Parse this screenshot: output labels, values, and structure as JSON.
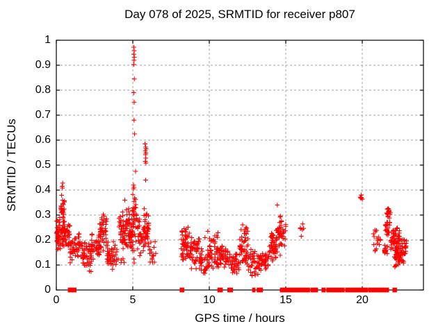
{
  "chart": {
    "title": "Day 078 of 2025, SRMTID for receiver p807",
    "xlabel": "GPS time / hours",
    "ylabel": "SRMTID / TECUs"
  },
  "chart_data": {
    "type": "scatter",
    "title": "Day 078 of 2025, SRMTID for receiver p807",
    "xlabel": "GPS time / hours",
    "ylabel": "SRMTID / TECUs",
    "xlim": [
      0,
      24
    ],
    "ylim": [
      0,
      1
    ],
    "xticks": [
      0,
      5,
      10,
      15,
      20
    ],
    "yticks": [
      0,
      0.1,
      0.2,
      0.3,
      0.4,
      0.5,
      0.6,
      0.7,
      0.8,
      0.9,
      1
    ],
    "grid": true,
    "legend": "none",
    "marker": "plus",
    "colors": {
      "marker": "#ff0000",
      "grid": "#a0a0a0",
      "axis": "#000000",
      "background": "#ffffff"
    },
    "clusters_format": "[x_start_hours, x_end_hours, y_min_tecus, y_max_tecus, point_count]",
    "clusters": [
      [
        0.02,
        0.28,
        0.155,
        0.31,
        40
      ],
      [
        0.3,
        0.55,
        0.26,
        0.4,
        22
      ],
      [
        0.3,
        0.9,
        0.16,
        0.3,
        60
      ],
      [
        0.9,
        1.18,
        0.1,
        0.21,
        18
      ],
      [
        1.18,
        1.7,
        0.1,
        0.26,
        30
      ],
      [
        1.7,
        2.3,
        0.07,
        0.22,
        48
      ],
      [
        2.3,
        2.8,
        0.11,
        0.23,
        36
      ],
      [
        2.8,
        3.3,
        0.13,
        0.33,
        46
      ],
      [
        3.3,
        4.05,
        0.07,
        0.2,
        48
      ],
      [
        4.05,
        4.5,
        0.1,
        0.38,
        42
      ],
      [
        4.5,
        4.98,
        0.14,
        0.35,
        52
      ],
      [
        4.98,
        5.25,
        0.1,
        0.44,
        40
      ],
      [
        5.3,
        5.72,
        0.12,
        0.3,
        30
      ],
      [
        5.72,
        6.05,
        0.14,
        0.35,
        40
      ],
      [
        6.05,
        6.5,
        0.1,
        0.21,
        16
      ],
      [
        8.15,
        8.7,
        0.1,
        0.27,
        52
      ],
      [
        8.7,
        9.35,
        0.08,
        0.22,
        46
      ],
      [
        9.35,
        10.0,
        0.05,
        0.17,
        38
      ],
      [
        10.0,
        10.6,
        0.08,
        0.24,
        46
      ],
      [
        10.6,
        11.3,
        0.06,
        0.19,
        44
      ],
      [
        11.3,
        11.95,
        0.05,
        0.16,
        40
      ],
      [
        11.95,
        12.55,
        0.08,
        0.27,
        55
      ],
      [
        12.55,
        13.3,
        0.05,
        0.18,
        46
      ],
      [
        13.3,
        13.85,
        0.06,
        0.16,
        34
      ],
      [
        13.85,
        14.35,
        0.1,
        0.25,
        46
      ],
      [
        14.35,
        15.0,
        0.13,
        0.31,
        46
      ],
      [
        15.95,
        16.18,
        0.205,
        0.27,
        6
      ],
      [
        19.85,
        20.1,
        0.355,
        0.39,
        7
      ],
      [
        20.7,
        21.2,
        0.14,
        0.245,
        16
      ],
      [
        21.45,
        21.65,
        0.135,
        0.185,
        18
      ],
      [
        21.5,
        21.8,
        0.2,
        0.3,
        22
      ],
      [
        21.55,
        21.85,
        0.28,
        0.345,
        16
      ],
      [
        21.85,
        22.45,
        0.13,
        0.26,
        60
      ],
      [
        22.1,
        22.7,
        0.085,
        0.16,
        40
      ],
      [
        22.45,
        22.9,
        0.13,
        0.22,
        24
      ]
    ],
    "outlier_points": [
      [
        0.38,
        0.415
      ],
      [
        0.42,
        0.428
      ],
      [
        0.4,
        0.408
      ],
      [
        5.07,
        0.972
      ],
      [
        5.09,
        0.958
      ],
      [
        5.07,
        0.944
      ],
      [
        5.1,
        0.932
      ],
      [
        5.08,
        0.92
      ],
      [
        5.07,
        0.903
      ],
      [
        5.1,
        0.845
      ],
      [
        5.06,
        0.79
      ],
      [
        5.09,
        0.752
      ],
      [
        5.08,
        0.68
      ],
      [
        5.12,
        0.625
      ],
      [
        5.18,
        0.475
      ],
      [
        5.05,
        0.42
      ],
      [
        5.8,
        0.585
      ],
      [
        5.84,
        0.572
      ],
      [
        5.87,
        0.565
      ],
      [
        5.82,
        0.557
      ],
      [
        5.86,
        0.549
      ],
      [
        5.83,
        0.542
      ],
      [
        5.85,
        0.528
      ],
      [
        5.82,
        0.515
      ],
      [
        5.86,
        0.508
      ],
      [
        5.84,
        0.44
      ],
      [
        9.72,
        0.21
      ],
      [
        9.9,
        0.235
      ],
      [
        12.4,
        0.25
      ],
      [
        14.45,
        0.34
      ]
    ],
    "zero_value_segments_hours": [
      [
        0.82,
        1.02
      ],
      [
        1.06,
        1.25
      ],
      [
        8.13,
        8.3
      ],
      [
        10.6,
        10.82
      ],
      [
        11.25,
        11.48
      ],
      [
        12.87,
        12.95
      ],
      [
        13.17,
        13.27
      ],
      [
        13.38,
        13.44
      ],
      [
        14.68,
        14.79
      ],
      [
        14.86,
        14.98
      ],
      [
        15.08,
        15.33
      ],
      [
        15.4,
        16.52
      ],
      [
        16.68,
        16.76
      ],
      [
        16.88,
        16.96
      ],
      [
        17.0,
        17.04
      ],
      [
        17.4,
        17.54
      ],
      [
        17.72,
        18.25
      ],
      [
        18.35,
        18.78
      ],
      [
        18.95,
        19.18
      ],
      [
        19.3,
        20.08
      ],
      [
        20.14,
        20.3
      ],
      [
        20.45,
        21.18
      ],
      [
        21.28,
        21.68
      ],
      [
        22.04,
        22.09
      ],
      [
        22.15,
        22.2
      ]
    ]
  }
}
